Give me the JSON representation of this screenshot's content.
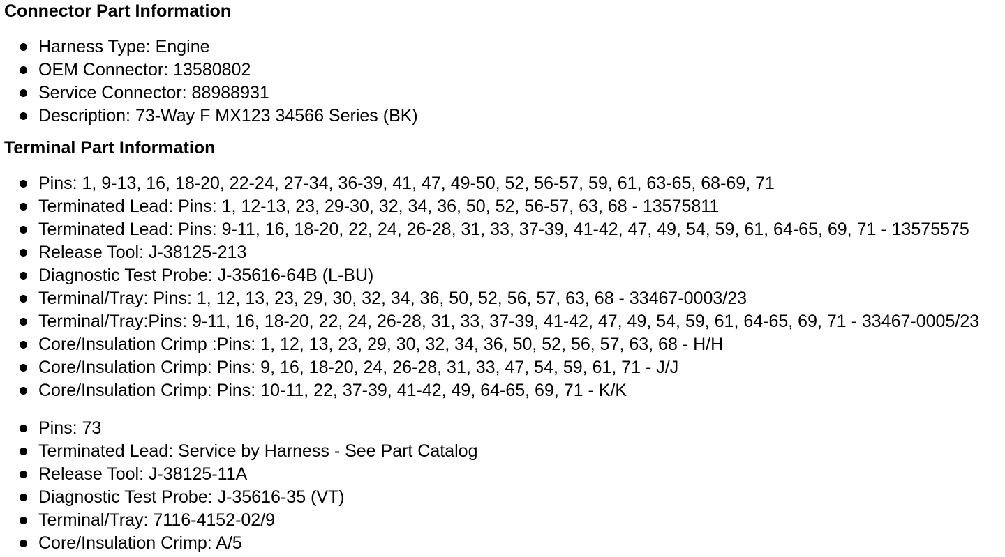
{
  "page": {
    "background_color": "#ffffff",
    "text_color": "#000000"
  },
  "sections": [
    {
      "heading": "Connector Part Information",
      "groups": [
        {
          "items": [
            "Harness Type: Engine",
            "OEM Connector: 13580802",
            "Service Connector: 88988931",
            "Description: 73-Way F MX123 34566 Series (BK)"
          ]
        }
      ]
    },
    {
      "heading": "Terminal Part Information",
      "groups": [
        {
          "items": [
            "Pins: 1, 9-13, 16, 18-20, 22-24, 27-34, 36-39, 41, 47, 49-50, 52, 56-57, 59, 61, 63-65, 68-69, 71",
            "Terminated Lead: Pins: 1, 12-13, 23, 29-30, 32, 34, 36, 50, 52, 56-57, 63, 68 - 13575811",
            "Terminated Lead: Pins: 9-11, 16, 18-20, 22, 24, 26-28, 31, 33, 37-39, 41-42, 47, 49, 54, 59, 61, 64-65, 69, 71 - 13575575",
            "Release Tool: J-38125-213",
            "Diagnostic Test Probe: J-35616-64B (L-BU)",
            "Terminal/Tray: Pins: 1, 12, 13, 23, 29, 30, 32, 34, 36, 50, 52, 56, 57, 63, 68 - 33467-0003/23",
            "Terminal/Tray:Pins: 9-11, 16, 18-20, 22, 24, 26-28, 31, 33, 37-39, 41-42, 47, 49, 54, 59, 61, 64-65, 69, 71 - 33467-0005/23",
            "Core/Insulation Crimp :Pins: 1, 12, 13, 23, 29, 30, 32, 34, 36, 50, 52, 56, 57, 63, 68 - H/H",
            "Core/Insulation Crimp: Pins: 9, 16, 18-20, 24, 26-28, 31, 33, 47, 54, 59, 61, 71 - J/J",
            "Core/Insulation Crimp: Pins: 10-11, 22, 37-39, 41-42, 49, 64-65, 69, 71 - K/K"
          ]
        },
        {
          "items": [
            "Pins: 73",
            "Terminated Lead: Service by Harness - See Part Catalog",
            "Release Tool: J-38125-11A",
            "Diagnostic Test Probe: J-35616-35 (VT)",
            "Terminal/Tray: 7116-4152-02/9",
            "Core/Insulation Crimp: A/5"
          ]
        }
      ]
    }
  ]
}
